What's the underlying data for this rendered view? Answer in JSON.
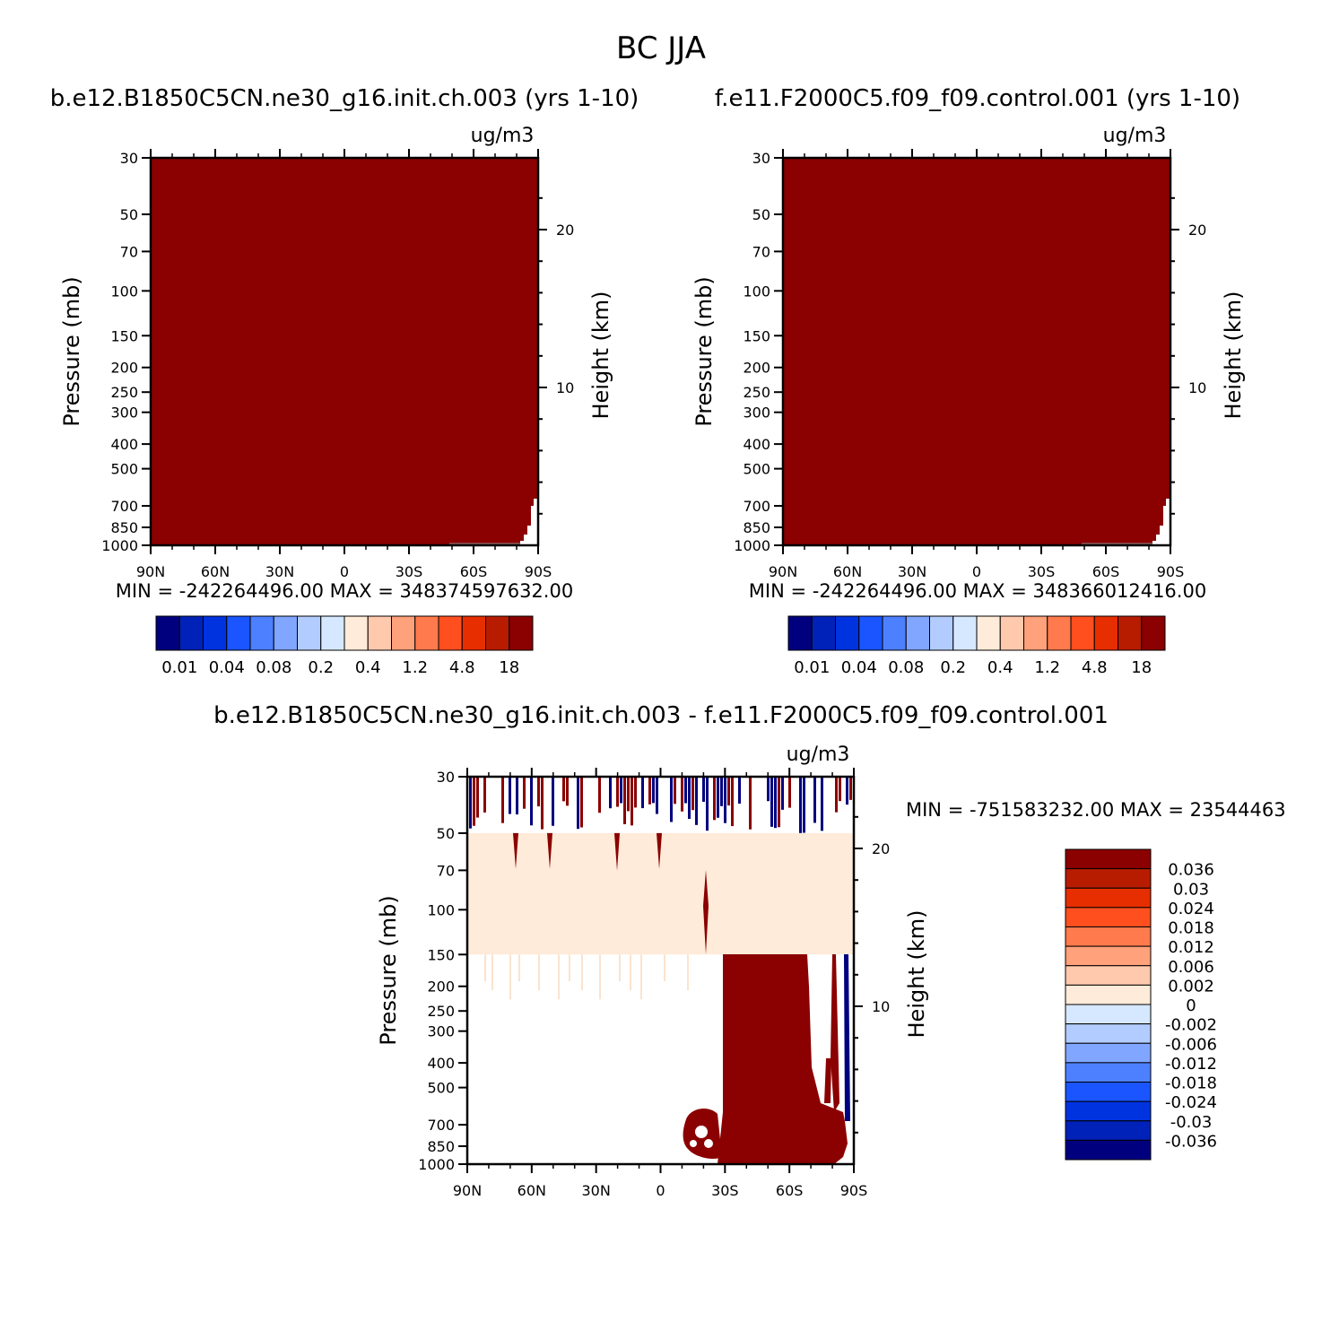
{
  "figure": {
    "title": "BC JJA",
    "units": "ug/m3",
    "xlabel": "",
    "ylabel": "Pressure (mb)",
    "ylabel_right": "Height (km)",
    "colors": {
      "dark_red": "#8b0000",
      "peach": "#ffebd9"
    }
  },
  "chart_data": [
    {
      "type": "heatmap",
      "title": "b.e12.B1850C5CN.ne30_g16.init.ch.003 (yrs 1-10)",
      "units_label": "ug/m3",
      "ylabel": "Pressure (mb)",
      "ylabel_right": "Height (km)",
      "x_ticks": [
        "90N",
        "60N",
        "30N",
        "0",
        "30S",
        "60S",
        "90S"
      ],
      "y_ticks": [
        30,
        50,
        70,
        100,
        150,
        200,
        250,
        300,
        400,
        500,
        700,
        850,
        1000
      ],
      "y_right_ticks": [
        20,
        10
      ],
      "x_range": [
        90,
        -90
      ],
      "y_range": [
        30,
        1000
      ],
      "y_scale": "log",
      "min_label": "MIN = -242264496.00",
      "max_label": "MAX = 348374597632.00",
      "fill": "dark_red",
      "colorbar": {
        "orientation": "horizontal",
        "labels": [
          "0.01",
          "0.04",
          "0.08",
          "0.2",
          "0.4",
          "1.2",
          "4.8",
          "18"
        ],
        "colors": [
          "#00007f",
          "#0022b8",
          "#0033e0",
          "#1a55ff",
          "#4d80ff",
          "#80a6ff",
          "#b3ccff",
          "#d6e8ff",
          "#ffebd9",
          "#ffc9ad",
          "#ffa17a",
          "#ff7a4d",
          "#ff4f1f",
          "#e62e00",
          "#b81c00",
          "#8b0000"
        ]
      }
    },
    {
      "type": "heatmap",
      "title": "f.e11.F2000C5.f09_f09.control.001 (yrs 1-10)",
      "units_label": "ug/m3",
      "ylabel": "Pressure (mb)",
      "ylabel_right": "Height (km)",
      "x_ticks": [
        "90N",
        "60N",
        "30N",
        "0",
        "30S",
        "60S",
        "90S"
      ],
      "y_ticks": [
        30,
        50,
        70,
        100,
        150,
        200,
        250,
        300,
        400,
        500,
        700,
        850,
        1000
      ],
      "y_right_ticks": [
        20,
        10
      ],
      "x_range": [
        90,
        -90
      ],
      "y_range": [
        30,
        1000
      ],
      "y_scale": "log",
      "min_label": "MIN = -242264496.00",
      "max_label": "MAX = 348366012416.00",
      "fill": "dark_red",
      "colorbar": {
        "orientation": "horizontal",
        "labels": [
          "0.01",
          "0.04",
          "0.08",
          "0.2",
          "0.4",
          "1.2",
          "4.8",
          "18"
        ],
        "colors": [
          "#00007f",
          "#0022b8",
          "#0033e0",
          "#1a55ff",
          "#4d80ff",
          "#80a6ff",
          "#b3ccff",
          "#d6e8ff",
          "#ffebd9",
          "#ffc9ad",
          "#ffa17a",
          "#ff7a4d",
          "#ff4f1f",
          "#e62e00",
          "#b81c00",
          "#8b0000"
        ]
      }
    },
    {
      "type": "heatmap",
      "title": "b.e12.B1850C5CN.ne30_g16.init.ch.003 - f.e11.F2000C5.f09_f09.control.001",
      "units_label": "ug/m3",
      "ylabel": "Pressure (mb)",
      "ylabel_right": "Height (km)",
      "x_ticks": [
        "90N",
        "60N",
        "30N",
        "0",
        "30S",
        "60S",
        "90S"
      ],
      "y_ticks": [
        30,
        50,
        70,
        100,
        150,
        200,
        250,
        300,
        400,
        500,
        700,
        850,
        1000
      ],
      "y_right_ticks": [
        20,
        10
      ],
      "x_range": [
        90,
        -90
      ],
      "y_range": [
        30,
        1000
      ],
      "y_scale": "log",
      "min_label": "MIN = -751583232.00",
      "max_label": "MAX = 23544463",
      "colorbar": {
        "orientation": "vertical",
        "labels": [
          "0.036",
          "0.03",
          "0.024",
          "0.018",
          "0.012",
          "0.006",
          "0.002",
          "0",
          "-0.002",
          "-0.006",
          "-0.012",
          "-0.018",
          "-0.024",
          "-0.03",
          "-0.036"
        ],
        "colors": [
          "#8b0000",
          "#b81c00",
          "#e62e00",
          "#ff4f1f",
          "#ff7a4d",
          "#ffa17a",
          "#ffc9ad",
          "#ffebd9",
          "#d6e8ff",
          "#b3ccff",
          "#80a6ff",
          "#4d80ff",
          "#1a55ff",
          "#0033e0",
          "#0022b8",
          "#00007f"
        ]
      },
      "regions": [
        {
          "name": "peach band",
          "p_top": 50,
          "p_bottom": 150,
          "color": "peach"
        },
        {
          "name": "upper noisy layer",
          "p_top": 30,
          "p_bottom": 50
        },
        {
          "name": "southern hemisphere column",
          "lat_from": -19,
          "lat_to": -70,
          "p_top": 150,
          "p_bottom": 1000,
          "color": "dark_red"
        }
      ]
    }
  ]
}
